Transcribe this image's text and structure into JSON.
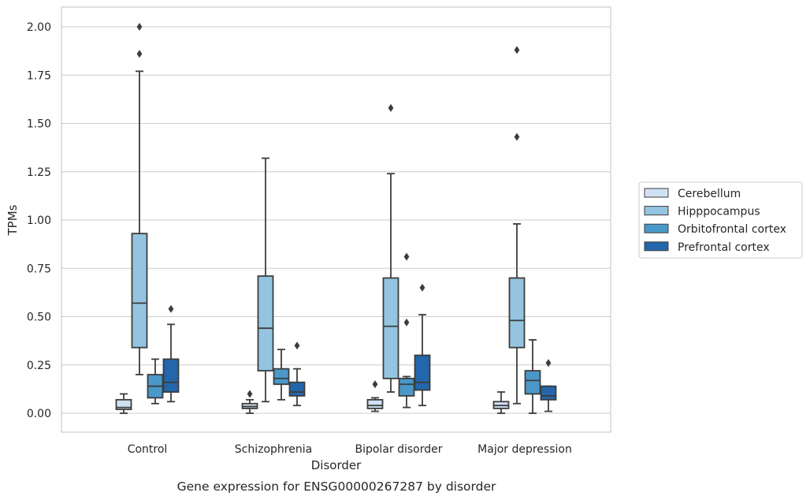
{
  "chart_data": {
    "type": "box",
    "title": "",
    "caption": "Gene expression for ENSG00000267287 by disorder",
    "xlabel": "Disorder",
    "ylabel": "TPMs",
    "ylim": [
      -0.1,
      2.1
    ],
    "yticks": [
      "0.00",
      "0.25",
      "0.50",
      "0.75",
      "1.00",
      "1.25",
      "1.50",
      "1.75",
      "2.00"
    ],
    "ytick_values": [
      0,
      0.25,
      0.5,
      0.75,
      1.0,
      1.25,
      1.5,
      1.75,
      2.0
    ],
    "categories": [
      "Control",
      "Schizophrenia",
      "Bipolar disorder",
      "Major depression"
    ],
    "grid": "horizontal",
    "legend_position": "right",
    "series": [
      {
        "name": "Cerebellum",
        "color": "#d0e1f2",
        "boxes": [
          {
            "whislo": 0.0,
            "q1": 0.02,
            "med": 0.03,
            "q3": 0.07,
            "whishi": 0.1,
            "fliers": []
          },
          {
            "whislo": 0.0,
            "q1": 0.025,
            "med": 0.035,
            "q3": 0.05,
            "whishi": 0.07,
            "fliers": [
              0.1
            ]
          },
          {
            "whislo": 0.01,
            "q1": 0.025,
            "med": 0.04,
            "q3": 0.07,
            "whishi": 0.08,
            "fliers": [
              0.15
            ]
          },
          {
            "whislo": 0.0,
            "q1": 0.025,
            "med": 0.04,
            "q3": 0.06,
            "whishi": 0.11,
            "fliers": []
          }
        ]
      },
      {
        "name": "Hipppocampus",
        "color": "#94c4df",
        "boxes": [
          {
            "whislo": 0.2,
            "q1": 0.34,
            "med": 0.57,
            "q3": 0.93,
            "whishi": 1.77,
            "fliers": [
              1.86,
              2.0
            ]
          },
          {
            "whislo": 0.06,
            "q1": 0.22,
            "med": 0.44,
            "q3": 0.71,
            "whishi": 1.32,
            "fliers": []
          },
          {
            "whislo": 0.11,
            "q1": 0.18,
            "med": 0.45,
            "q3": 0.7,
            "whishi": 1.24,
            "fliers": [
              1.58
            ]
          },
          {
            "whislo": 0.05,
            "q1": 0.34,
            "med": 0.48,
            "q3": 0.7,
            "whishi": 0.98,
            "fliers": [
              1.43,
              1.88
            ]
          }
        ]
      },
      {
        "name": "Orbitofrontal cortex",
        "color": "#4a98c9",
        "boxes": [
          {
            "whislo": 0.05,
            "q1": 0.08,
            "med": 0.14,
            "q3": 0.2,
            "whishi": 0.28,
            "fliers": []
          },
          {
            "whislo": 0.07,
            "q1": 0.15,
            "med": 0.18,
            "q3": 0.23,
            "whishi": 0.33,
            "fliers": []
          },
          {
            "whislo": 0.03,
            "q1": 0.09,
            "med": 0.15,
            "q3": 0.18,
            "whishi": 0.19,
            "fliers": [
              0.47,
              0.81
            ]
          },
          {
            "whislo": 0.0,
            "q1": 0.1,
            "med": 0.17,
            "q3": 0.22,
            "whishi": 0.38,
            "fliers": []
          }
        ]
      },
      {
        "name": "Prefrontal cortex",
        "color": "#2366ab",
        "boxes": [
          {
            "whislo": 0.06,
            "q1": 0.11,
            "med": 0.16,
            "q3": 0.28,
            "whishi": 0.46,
            "fliers": [
              0.54
            ]
          },
          {
            "whislo": 0.04,
            "q1": 0.09,
            "med": 0.11,
            "q3": 0.16,
            "whishi": 0.23,
            "fliers": [
              0.35
            ]
          },
          {
            "whislo": 0.04,
            "q1": 0.12,
            "med": 0.16,
            "q3": 0.3,
            "whishi": 0.51,
            "fliers": [
              0.65
            ]
          },
          {
            "whislo": 0.01,
            "q1": 0.07,
            "med": 0.09,
            "q3": 0.14,
            "whishi": 0.14,
            "fliers": [
              0.26
            ]
          }
        ]
      }
    ]
  }
}
